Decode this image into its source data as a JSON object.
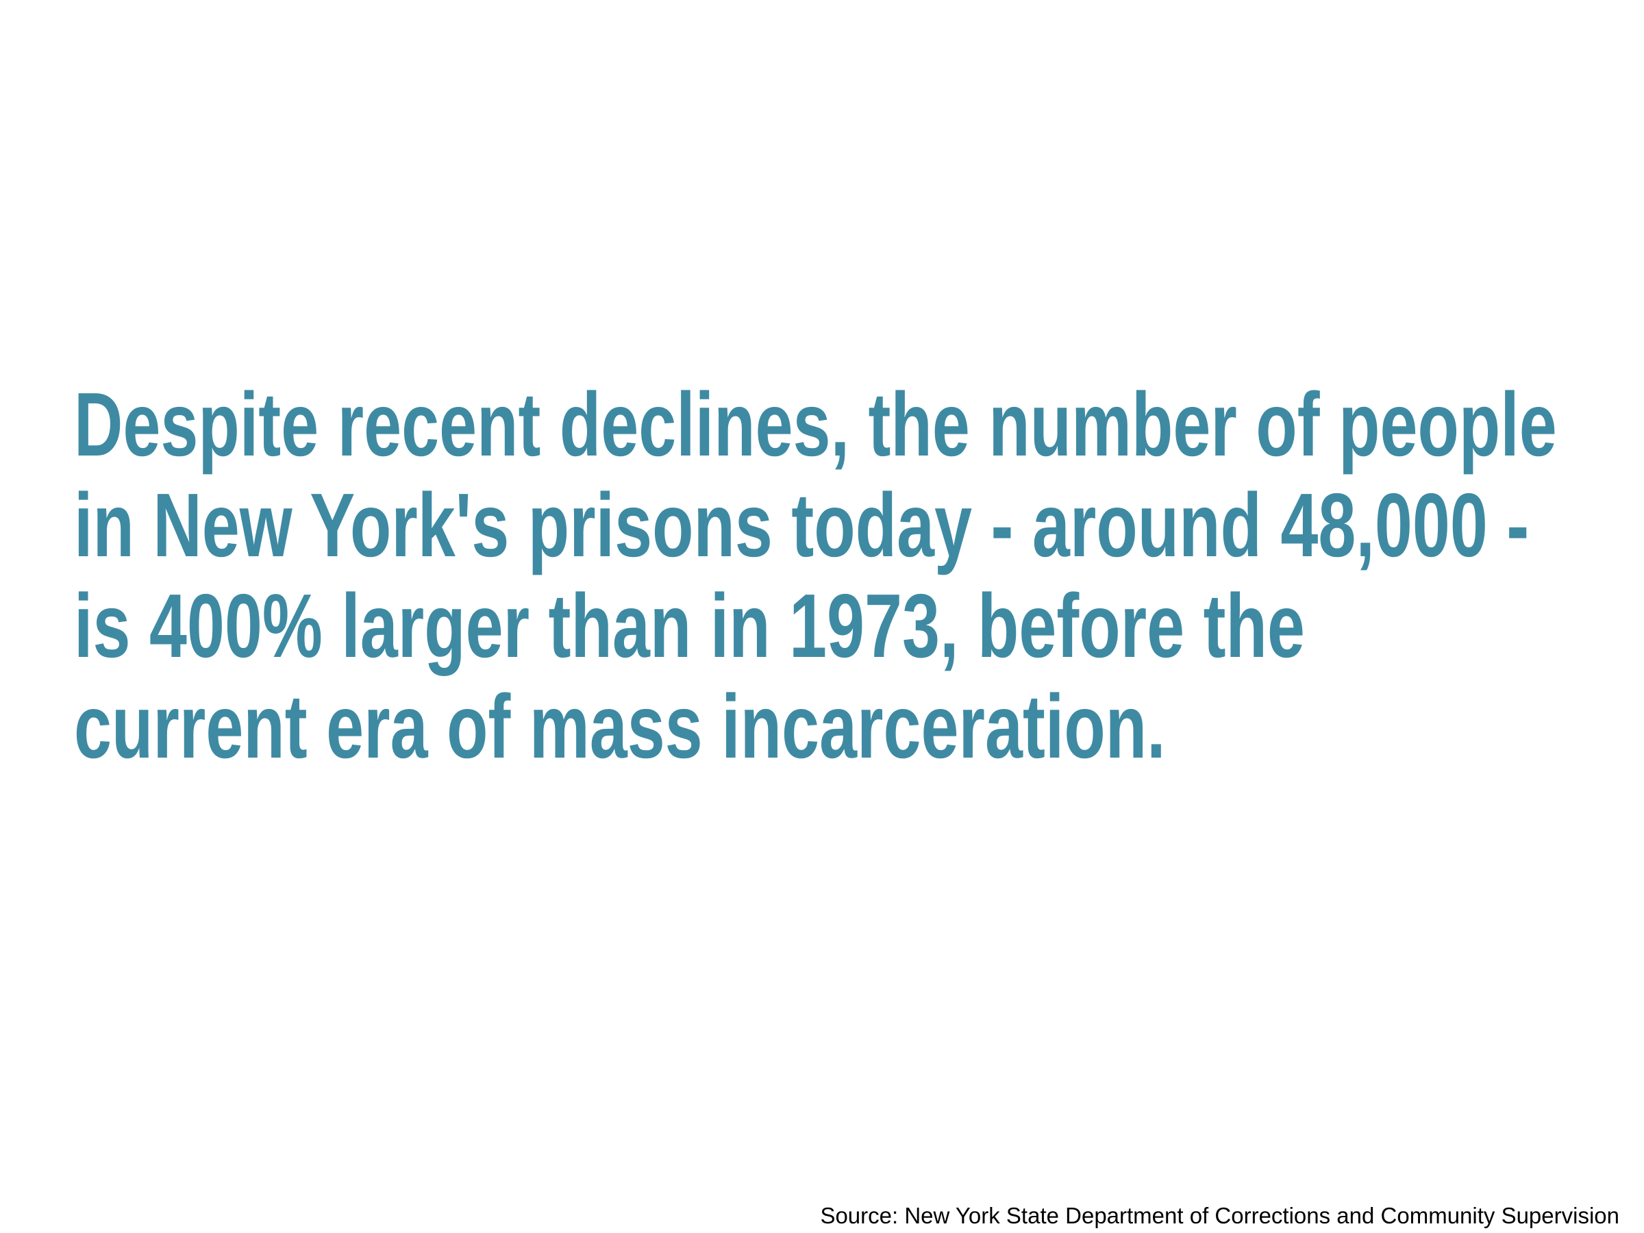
{
  "headline": {
    "lines": [
      "Despite recent declines, the number of people",
      "in New York's prisons today - around 48,000 -",
      "is 400% larger than in 1973, before the",
      "current era of mass incarceration."
    ]
  },
  "source": "Source: New York State Department of Corrections and Community Supervision"
}
